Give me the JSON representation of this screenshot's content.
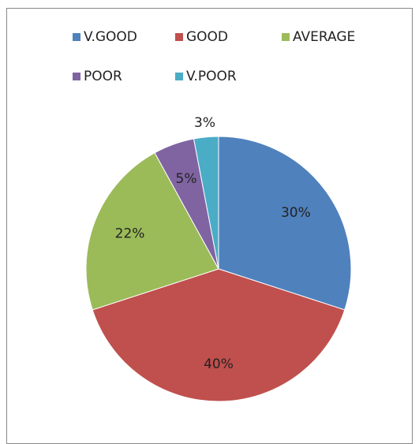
{
  "chart_data": {
    "type": "pie",
    "categories": [
      "V.GOOD",
      "GOOD",
      "AVERAGE",
      "POOR",
      "V.POOR"
    ],
    "values": [
      30,
      40,
      22,
      5,
      3
    ],
    "value_labels": [
      "30%",
      "40%",
      "22%",
      "5%",
      "3%"
    ],
    "colors": [
      "#4f81bd",
      "#c0504d",
      "#9bbb59",
      "#8064a2",
      "#4bacc6"
    ],
    "legend": "top"
  }
}
